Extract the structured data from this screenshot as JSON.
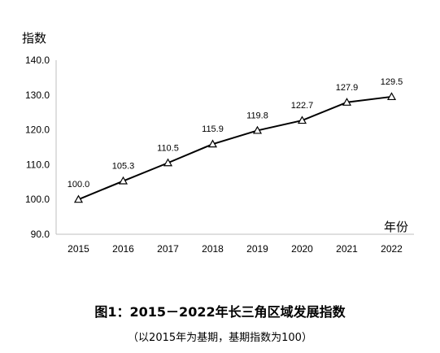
{
  "chart_data": {
    "type": "line",
    "title": "图1：2015－2022年长三角区域发展指数",
    "subtitle": "（以2015年为基期，基期指数为100）",
    "ylabel": "指数",
    "xlabel": "年份",
    "categories": [
      "2015",
      "2016",
      "2017",
      "2018",
      "2019",
      "2020",
      "2021",
      "2022"
    ],
    "series": [
      {
        "values": [
          100.0,
          105.3,
          110.5,
          115.9,
          119.8,
          122.7,
          127.9,
          129.5
        ]
      }
    ],
    "data_labels": [
      "100.0",
      "105.3",
      "110.5",
      "115.9",
      "119.8",
      "122.7",
      "127.9",
      "129.5"
    ],
    "yticks": [
      "90.0",
      "100.0",
      "110.0",
      "120.0",
      "130.0",
      "140.0"
    ],
    "ylim": [
      90,
      140
    ],
    "grid": false,
    "marker": "triangle",
    "line_color": "#000000"
  }
}
